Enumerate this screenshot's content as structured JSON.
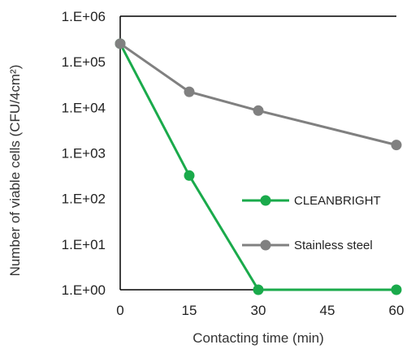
{
  "chart_data": {
    "type": "line",
    "xlabel": "Contacting time (min)",
    "ylabel": "Number of viable cells (CFU/4cm²)",
    "y_scale": "log",
    "x_ticks": [
      "0",
      "15",
      "30",
      "45",
      "60"
    ],
    "y_ticks": [
      "1.E+00",
      "1.E+01",
      "1.E+02",
      "1.E+03",
      "1.E+04",
      "1.E+05",
      "1.E+06"
    ],
    "xlim": [
      0,
      60
    ],
    "ylim": [
      1,
      1000000
    ],
    "grid": false,
    "legend_position": "right",
    "series": [
      {
        "name": "CLEANBRIGHT",
        "color": "#1aaa4b",
        "x": [
          0,
          15,
          30,
          60
        ],
        "y": [
          250000,
          320,
          1,
          1
        ]
      },
      {
        "name": "Stainless steel",
        "color": "#808080",
        "x": [
          0,
          15,
          30,
          60
        ],
        "y": [
          250000,
          22000,
          8500,
          1500
        ]
      }
    ]
  }
}
